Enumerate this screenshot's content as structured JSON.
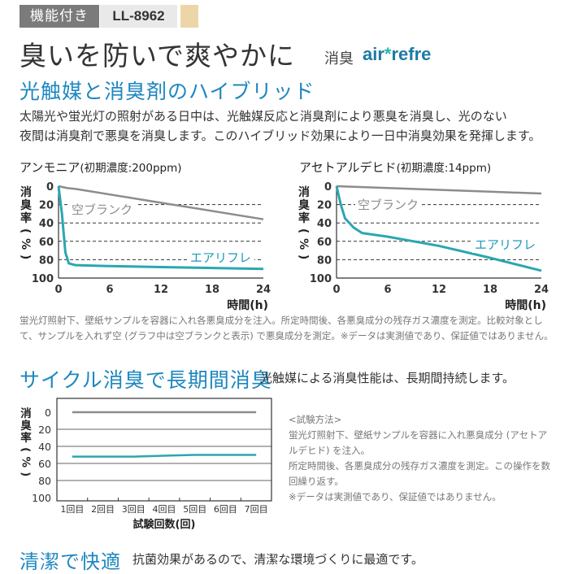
{
  "header": {
    "badge": "機能付き",
    "model": "LL-8962",
    "title": "臭いを防いで爽やかに",
    "subtitle": "消臭",
    "brand_part1": "air",
    "brand_star": "*",
    "brand_part2": "refre"
  },
  "section1": {
    "title": "光触媒と消臭剤のハイブリッド",
    "text1": "太陽光や蛍光灯の照射がある日中は、光触媒反応と消臭剤により悪臭を消臭し、光のない",
    "text2": "夜間は消臭剤で悪臭を消臭します。このハイブリッド効果により一日中消臭効果を発揮します。"
  },
  "chart_data": [
    {
      "type": "line",
      "title_main": "アンモニア",
      "title_note": "(初期濃度:200ppm)",
      "ylabel": "消臭率(%)",
      "xlabel": "時間(h)",
      "xlim": [
        0,
        24
      ],
      "ylim": [
        0,
        100
      ],
      "y_inverted": true,
      "xticks": [
        "0",
        "6",
        "12",
        "18",
        "24"
      ],
      "yticks": [
        "0",
        "20",
        "40",
        "60",
        "80",
        "100"
      ],
      "grid": "horizontal dashed",
      "series": [
        {
          "name": "空ブランク",
          "color": "#8c8c8c",
          "x": [
            0,
            1,
            2,
            12,
            24
          ],
          "y": [
            0,
            2,
            3,
            18,
            36
          ]
        },
        {
          "name": "エアリフレ",
          "color": "#2aa7b0",
          "x": [
            0,
            0.4,
            0.8,
            1.2,
            2,
            6,
            12,
            18,
            24
          ],
          "y": [
            0,
            30,
            72,
            84,
            86,
            87,
            88,
            89,
            90
          ]
        }
      ]
    },
    {
      "type": "line",
      "title_main": "アセトアルデヒド",
      "title_note": "(初期濃度:14ppm)",
      "ylabel": "消臭率(%)",
      "xlabel": "時間(h)",
      "xlim": [
        0,
        24
      ],
      "ylim": [
        0,
        100
      ],
      "y_inverted": true,
      "xticks": [
        "0",
        "6",
        "12",
        "18",
        "24"
      ],
      "yticks": [
        "0",
        "20",
        "40",
        "60",
        "80",
        "100"
      ],
      "grid": "horizontal dashed",
      "series": [
        {
          "name": "空ブランク",
          "color": "#8c8c8c",
          "x": [
            0,
            6,
            12,
            18,
            24
          ],
          "y": [
            0,
            2,
            4,
            6,
            8
          ]
        },
        {
          "name": "エアリフレ",
          "color": "#2aa7b0",
          "x": [
            0,
            0.5,
            1,
            2,
            3,
            6,
            12,
            18,
            24
          ],
          "y": [
            0,
            20,
            35,
            45,
            51,
            55,
            65,
            78,
            92
          ]
        }
      ]
    },
    {
      "type": "line",
      "ylabel": "消臭率(%)",
      "xlabel": "試験回数(回)",
      "ylim": [
        0,
        100
      ],
      "y_inverted": true,
      "categories": [
        "1回目",
        "2回目",
        "3回目",
        "4回目",
        "5回目",
        "6回目",
        "7回目"
      ],
      "yticks": [
        "0",
        "20",
        "40",
        "60",
        "80",
        "100"
      ],
      "grid": "horizontal solid",
      "series": [
        {
          "color": "#8c8c8c",
          "values": [
            0,
            0,
            0,
            0,
            0,
            0,
            0
          ]
        },
        {
          "color": "#2aa7b0",
          "values": [
            52,
            52,
            52,
            51,
            50,
            50,
            50
          ]
        }
      ]
    }
  ],
  "notes": {
    "chart_note1": "蛍光灯照射下、壁紙サンプルを容器に入れ各悪臭成分を注入。所定時間後、各悪臭成分の残存ガス濃度を測定。比較対象とし",
    "chart_note2": "て、サンプルを入れず空 (グラフ中は空ブランクと表示) で悪臭成分を測定。※データは実測値であり、保証値ではありません。"
  },
  "section2": {
    "title": "サイクル消臭で長期間消臭",
    "lead": "光触媒による消臭性能は、長期間持続します。",
    "method_lines": [
      "<試験方法>",
      "蛍光灯照射下、壁紙サンプルを容器に入れ悪臭成分 (アセトア",
      "ルデヒド) を注入。",
      "所定時間後、各悪臭成分の残存ガス濃度を測定。この操作を数",
      "回繰り返す。",
      "※データは実測値であり、保証値ではありません。"
    ]
  },
  "section3": {
    "title": "清潔で快適",
    "text": "抗菌効果があるので、清潔な環境づくりに最適です。"
  }
}
